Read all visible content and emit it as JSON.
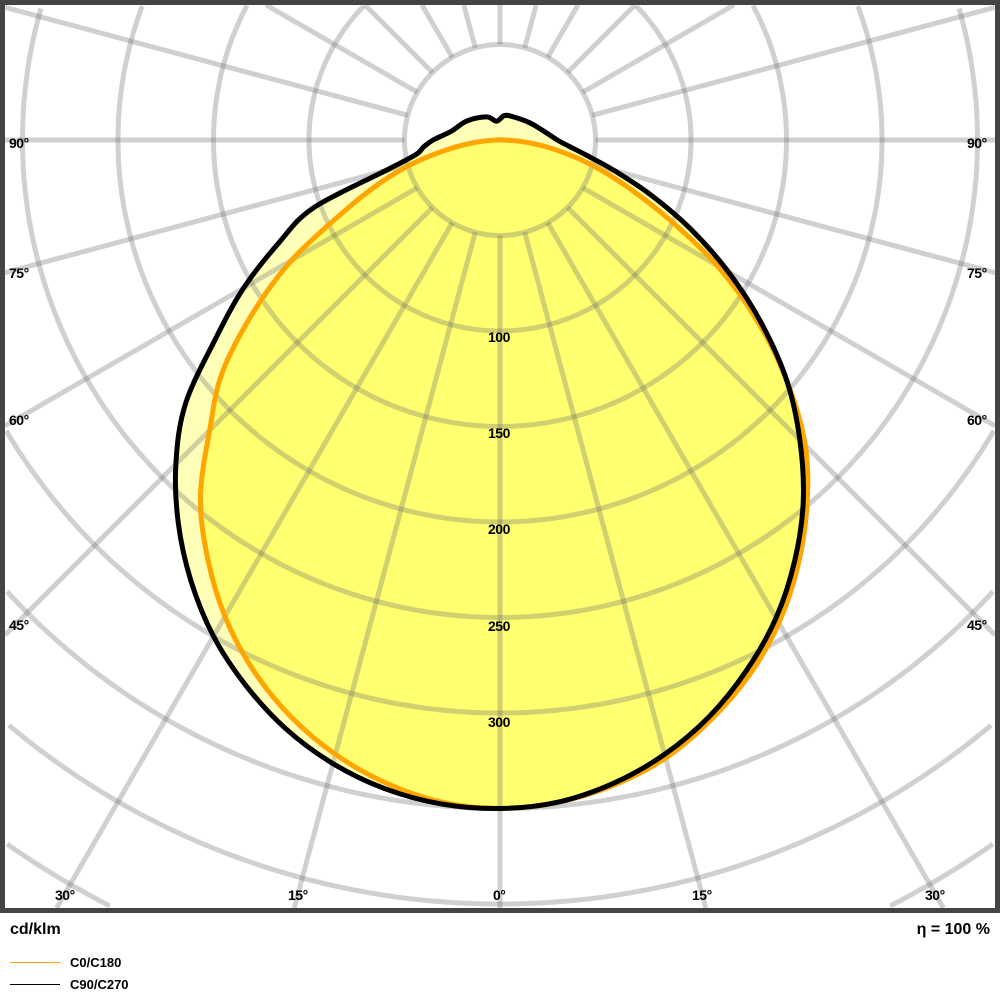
{
  "chart_data": {
    "type": "polar",
    "unit_label": "cd/klm",
    "efficiency_label": "η = 100 %",
    "radial_ticks": [
      100,
      150,
      200,
      250,
      300
    ],
    "radial_grid_step": 50,
    "angle_grid_step": 15,
    "angle_labels": {
      "side": [
        "90°",
        "75°",
        "60°",
        "45°"
      ],
      "bottom": [
        "30°",
        "15°",
        "0°",
        "15°",
        "30°"
      ]
    },
    "grid": true,
    "legend_placement": "bottom-left",
    "series": [
      {
        "name": "C0/C180",
        "color": "#ffa500",
        "gamma": [
          0,
          5,
          10,
          15,
          20,
          25,
          30,
          35,
          40,
          45,
          50,
          55,
          60,
          65,
          70,
          75,
          80,
          85,
          90
        ],
        "right": [
          350,
          348,
          343,
          335,
          323,
          309,
          292,
          272,
          250,
          226,
          196,
          164,
          131,
          97,
          70,
          49,
          30,
          14,
          2
        ],
        "left": [
          350,
          348,
          342,
          333,
          321,
          306,
          288,
          267,
          244,
          215,
          190,
          158,
          126,
          92,
          68,
          47,
          27,
          12,
          2
        ]
      },
      {
        "name": "C90/C270",
        "color": "#000000",
        "gamma": [
          0,
          5,
          10,
          15,
          20,
          25,
          30,
          35,
          40,
          45,
          50,
          55,
          60,
          65,
          70,
          75,
          80,
          85,
          90,
          100,
          120,
          150,
          170
        ],
        "right": [
          350,
          348,
          342,
          333,
          321,
          306,
          289,
          269,
          247,
          222,
          196,
          167,
          138,
          110,
          84,
          62,
          46,
          36,
          30,
          24,
          18,
          14,
          13
        ],
        "left": [
          350,
          349,
          345,
          338,
          328,
          315,
          300,
          282,
          262,
          240,
          215,
          182,
          155,
          128,
          104,
          62,
          45,
          40,
          35,
          26,
          20,
          14,
          10
        ]
      }
    ],
    "fill_colors": {
      "inner": "#ffff70",
      "outer": "#ffffb8"
    },
    "frame_color": "#444444"
  }
}
